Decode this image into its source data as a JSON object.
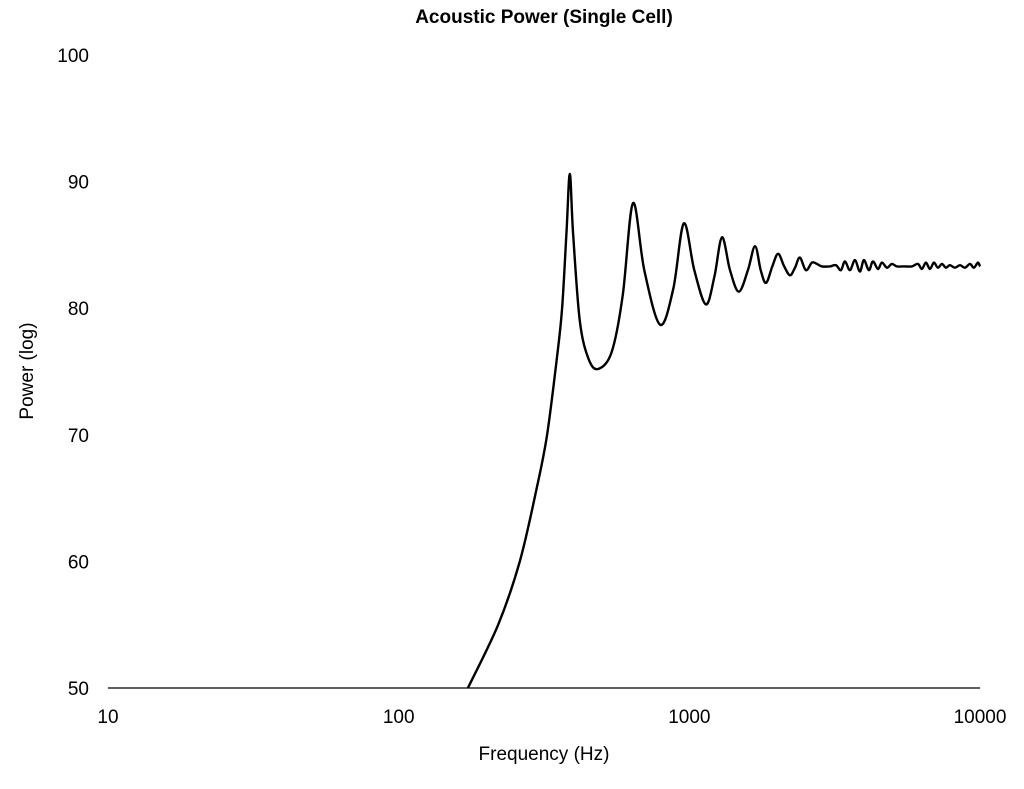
{
  "chart_data": {
    "type": "line",
    "title": "Acoustic Power (Single Cell)",
    "xlabel": "Frequency (Hz)",
    "ylabel": "Power (log)",
    "xscale": "log",
    "xlim": [
      10,
      10000
    ],
    "ylim": [
      50,
      100
    ],
    "xticks": [
      "10",
      "100",
      "1000",
      "10000"
    ],
    "yticks": [
      "50",
      "60",
      "70",
      "80",
      "90",
      "100"
    ],
    "grid": false,
    "legend": "none",
    "line_color": "#000000",
    "series": [
      {
        "name": "Acoustic Power",
        "x": [
          173,
          220,
          261,
          300,
          324,
          350,
          365,
          378,
          388,
          398,
          420,
          450,
          485,
          540,
          590,
          640,
          700,
          793,
          880,
          957,
          1040,
          1140,
          1220,
          1295,
          1380,
          1480,
          1590,
          1683,
          1760,
          1836,
          1930,
          2020,
          2120,
          2220,
          2310,
          2400,
          2518,
          2641,
          2748,
          2858,
          3046,
          3194,
          3323,
          3430,
          3569,
          3713,
          3863,
          3987,
          4148,
          4281,
          4455,
          4598,
          4784,
          4977,
          5178,
          5516,
          5831,
          6115,
          6311,
          6516,
          6726,
          6941,
          7165,
          7396,
          7633,
          7878,
          8199,
          8532,
          8879,
          9231,
          9528,
          9835,
          10000
        ],
        "y": [
          50,
          55,
          60,
          66,
          70,
          76,
          80,
          86,
          90.6,
          86,
          79,
          76,
          75.2,
          76.5,
          81,
          88.3,
          83,
          78.7,
          81.5,
          86.7,
          83,
          80.3,
          82.5,
          85.6,
          83,
          81.3,
          83,
          84.9,
          83,
          82.0,
          83.3,
          84.3,
          83.3,
          82.6,
          83.2,
          84.0,
          83.0,
          83.6,
          83.5,
          83.3,
          83.3,
          83.4,
          83.0,
          83.7,
          83.0,
          83.8,
          82.9,
          83.8,
          83.0,
          83.7,
          83.1,
          83.6,
          83.2,
          83.5,
          83.3,
          83.3,
          83.3,
          83.5,
          83.1,
          83.6,
          83.1,
          83.6,
          83.2,
          83.5,
          83.2,
          83.4,
          83.2,
          83.4,
          83.2,
          83.5,
          83.2,
          83.6,
          83.3
        ]
      }
    ]
  }
}
